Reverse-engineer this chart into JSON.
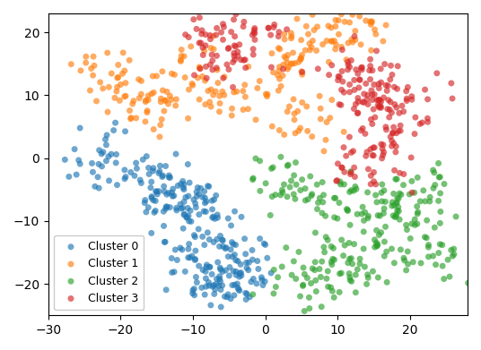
{
  "seed": 7,
  "xlim": [
    -30,
    28
  ],
  "ylim": [
    -25,
    23
  ],
  "colors": [
    "#1f77b4",
    "#ff7f0e",
    "#2ca02c",
    "#d62728"
  ],
  "alpha": 0.65,
  "marker_size": 25,
  "legend_labels": [
    "Cluster 0",
    "Cluster 1",
    "Cluster 2",
    "Cluster 3"
  ],
  "legend_loc": "lower left",
  "clusters": {
    "0": {
      "centers": [
        [
          -22,
          0
        ],
        [
          -15,
          -4
        ],
        [
          -10,
          -8
        ],
        [
          -8,
          -14
        ],
        [
          -6,
          -20
        ],
        [
          -3,
          -17
        ]
      ],
      "n": [
        35,
        50,
        55,
        50,
        45,
        40
      ],
      "std": [
        2.5,
        2.5,
        2.8,
        2.8,
        2.5,
        2.5
      ]
    },
    "1": {
      "centers": [
        [
          -22,
          12
        ],
        [
          -16,
          9
        ],
        [
          -10,
          14
        ],
        [
          -5,
          10
        ],
        [
          3,
          15
        ],
        [
          8,
          19
        ],
        [
          12,
          20
        ],
        [
          5,
          6
        ]
      ],
      "n": [
        30,
        35,
        25,
        30,
        35,
        30,
        25,
        25
      ],
      "std": [
        2.5,
        2.5,
        2.5,
        2.5,
        2.5,
        2.5,
        2.5,
        2.5
      ]
    },
    "2": {
      "centers": [
        [
          2,
          -3
        ],
        [
          8,
          -6
        ],
        [
          13,
          -10
        ],
        [
          18,
          -8
        ],
        [
          22,
          -6
        ],
        [
          16,
          -16
        ],
        [
          10,
          -19
        ],
        [
          5,
          -20
        ],
        [
          24,
          -14
        ]
      ],
      "n": [
        25,
        30,
        30,
        30,
        30,
        30,
        30,
        25,
        25
      ],
      "std": [
        2.5,
        2.5,
        2.5,
        2.5,
        2.5,
        2.5,
        2.5,
        2.5,
        2.5
      ]
    },
    "3": {
      "centers": [
        [
          -8,
          19
        ],
        [
          -5,
          16
        ],
        [
          0,
          20
        ],
        [
          12,
          14
        ],
        [
          15,
          10
        ],
        [
          17,
          6
        ],
        [
          17,
          2
        ],
        [
          13,
          -2
        ],
        [
          20,
          10
        ]
      ],
      "n": [
        25,
        30,
        20,
        35,
        35,
        30,
        25,
        20,
        25
      ],
      "std": [
        2.0,
        2.0,
        2.0,
        2.5,
        2.5,
        2.5,
        2.5,
        2.5,
        2.5
      ]
    }
  }
}
